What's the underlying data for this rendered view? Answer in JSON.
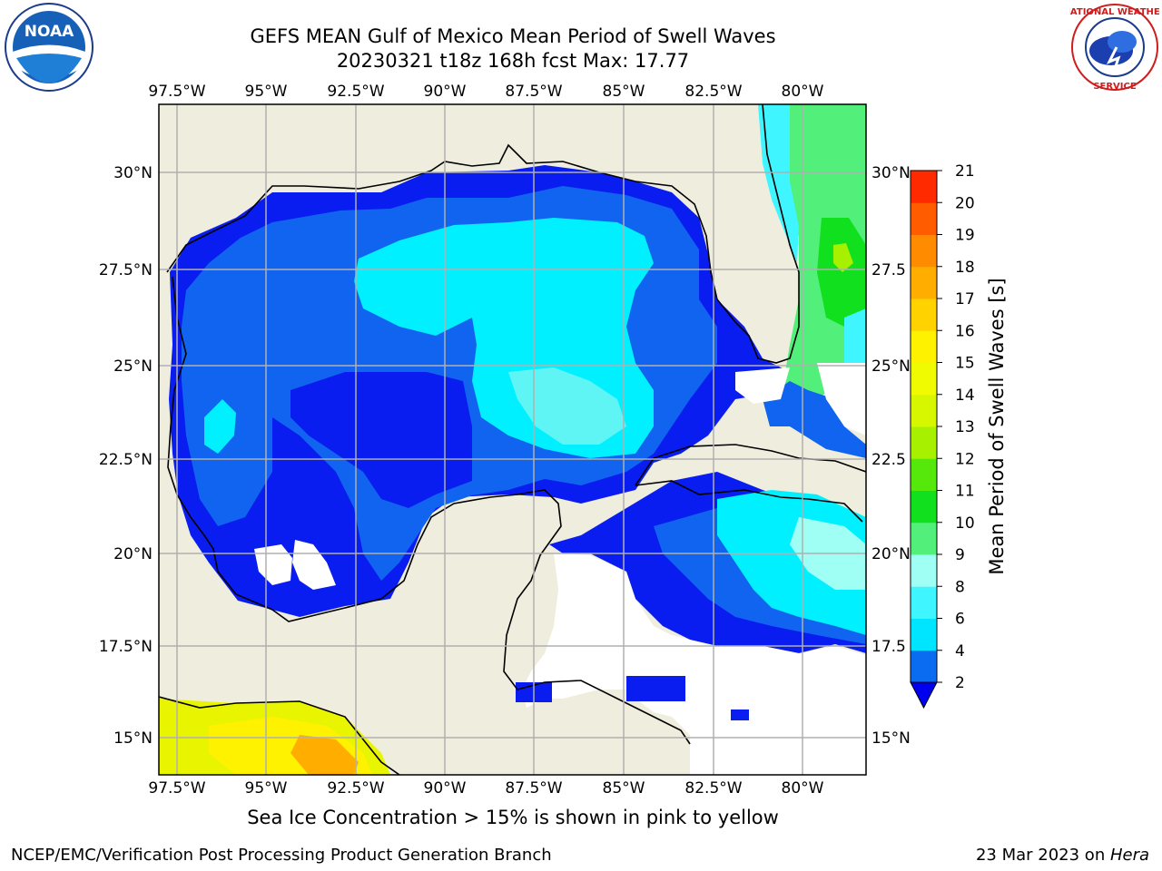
{
  "title": {
    "line1": "GEFS MEAN Gulf of Mexico Mean Period of Swell Waves",
    "line2": "20230321 t18z 168h fcst   Max: 17.77"
  },
  "map": {
    "lon_range": [
      -98.0,
      -78.5
    ],
    "lat_range": [
      14.0,
      31.6
    ],
    "lon_ticks": [
      "97.5°W",
      "95°W",
      "92.5°W",
      "90°W",
      "87.5°W",
      "85°W",
      "82.5°W",
      "80°W"
    ],
    "lat_ticks": [
      "30°N",
      "27.5°N",
      "25°N",
      "22.5°N",
      "20°N",
      "17.5°N",
      "15°N"
    ],
    "right_lat_ticks": [
      "30°N",
      "27.5",
      "25°N",
      "22.5",
      "20°N",
      "17.5",
      "15°N"
    ],
    "land_color": "#efedde",
    "grid_color": "#b0b0b0"
  },
  "colorbar": {
    "label": "Mean Period of Swell Waves [s]",
    "ticks": [
      "2",
      "4",
      "6",
      "8",
      "9",
      "10",
      "11",
      "12",
      "13",
      "14",
      "15",
      "16",
      "17",
      "18",
      "19",
      "20",
      "21"
    ],
    "colors": [
      "#0a6cf0",
      "#00e5ff",
      "#3ff5ff",
      "#a0fff5",
      "#52f07a",
      "#11e01e",
      "#55e80a",
      "#a7f000",
      "#d6f700",
      "#f0fa00",
      "#fff200",
      "#ffd200",
      "#ffae00",
      "#ff8c00",
      "#ff5c00",
      "#ff2a00"
    ],
    "under_color": "#0000f0"
  },
  "caption": "Sea Ice Concentration > 15% is shown in pink to yellow",
  "footer": {
    "left": "NCEP/EMC/Verification Post Processing Product Generation Branch",
    "right_prefix": "23 Mar 2023 on ",
    "right_host": "Hera"
  },
  "logos": {
    "left": "noaa-logo",
    "right": "nws-logo"
  }
}
